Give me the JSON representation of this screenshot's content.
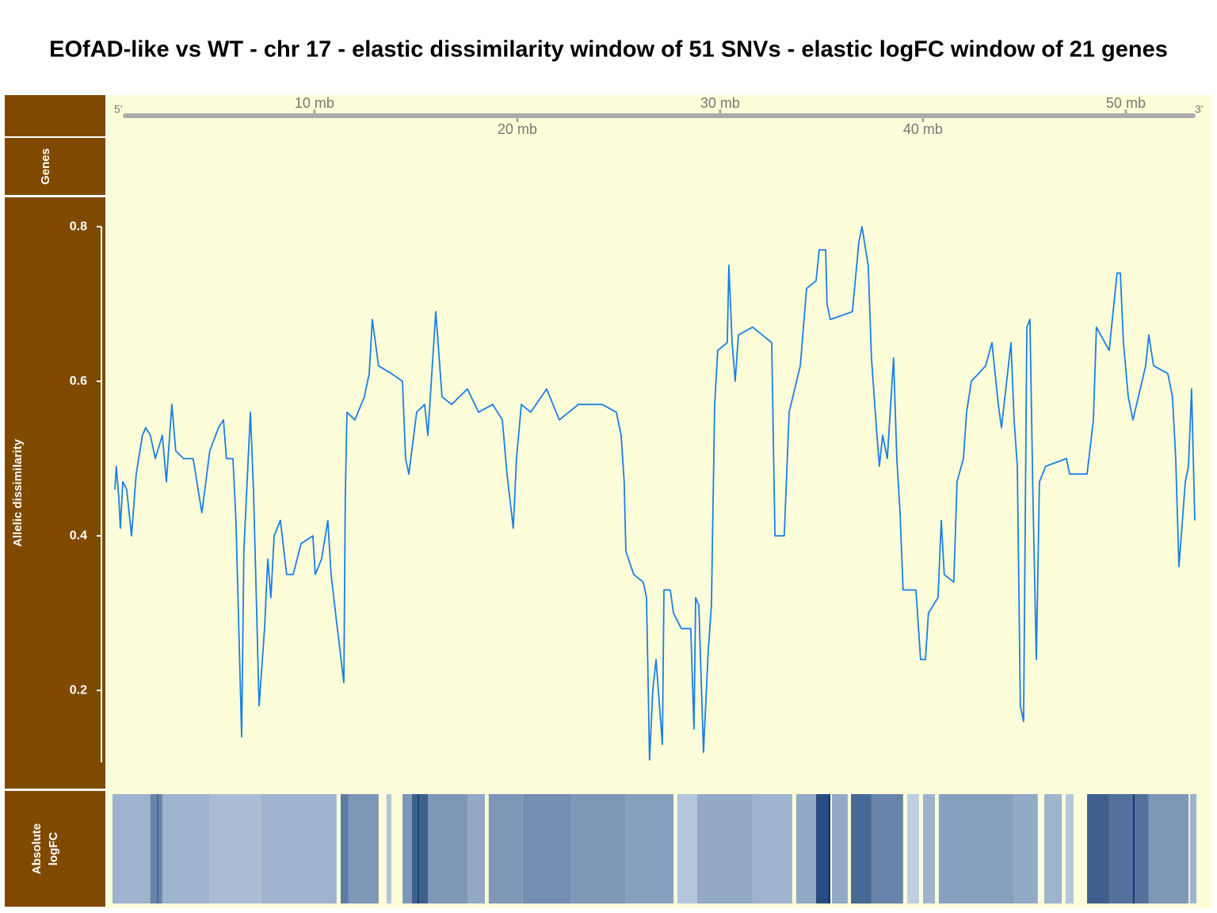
{
  "chart_data": {
    "type": "line",
    "title": "EOfAD-like vs WT - chr 17 - elastic dissimilarity window of 51 SNVs - elastic logFC window of 21 genes",
    "genome_axis": {
      "five_prime": "5'",
      "three_prime": "3'"
    },
    "gene_track_label": "Genes",
    "x": [
      0.16,
      0.23,
      0.35,
      0.43,
      0.55,
      0.74,
      0.98,
      1.21,
      1.52,
      1.68,
      1.91,
      2.15,
      2.5,
      2.7,
      2.97,
      3.16,
      3.55,
      4.02,
      4.26,
      4.45,
      4.84,
      5.27,
      5.51,
      5.66,
      5.98,
      6.13,
      6.41,
      6.52,
      6.84,
      6.99,
      7.15,
      7.27,
      7.54,
      7.7,
      7.85,
      8.01,
      8.32,
      8.63,
      8.95,
      9.34,
      9.92,
      10.04,
      10.35,
      10.66,
      10.82,
      11.13,
      11.45,
      11.52,
      11.6,
      11.99,
      12.46,
      12.7,
      12.85,
      13.16,
      13.79,
      14.34,
      14.49,
      14.65,
      15.04,
      15.43,
      15.59,
      15.98,
      16.29,
      16.76,
      17.54,
      18.09,
      18.79,
      19.26,
      19.49,
      19.8,
      19.96,
      20.2,
      20.66,
      21.45,
      22.07,
      23.01,
      24.18,
      24.88,
      25.12,
      25.27,
      25.35,
      25.74,
      26.21,
      26.37,
      26.52,
      26.68,
      26.84,
      27.15,
      27.23,
      27.54,
      27.7,
      28.09,
      28.55,
      28.71,
      28.79,
      28.95,
      29.18,
      29.41,
      29.57,
      29.73,
      29.88,
      30.35,
      30.43,
      30.59,
      30.74,
      30.9,
      31.6,
      32.54,
      32.7,
      33.16,
      33.4,
      33.95,
      34.26,
      34.73,
      34.88,
      35.2,
      35.27,
      35.43,
      36.52,
      36.84,
      36.99,
      37.3,
      37.46,
      37.7,
      37.85,
      38.01,
      38.24,
      38.55,
      38.71,
      38.87,
      39.02,
      39.65,
      39.88,
      40.12,
      40.27,
      40.74,
      40.9,
      41.05,
      41.52,
      41.68,
      41.99,
      42.15,
      42.38,
      43.09,
      43.4,
      43.71,
      43.87,
      44.34,
      44.49,
      44.65,
      44.8,
      44.96,
      45.12,
      45.27,
      45.43,
      45.59,
      45.74,
      46.05,
      47.07,
      47.23,
      48.09,
      48.4,
      48.55,
      49.18,
      49.57,
      49.73,
      49.88,
      50.12,
      50.35,
      50.98,
      51.13,
      51.37,
      52.07,
      52.3,
      52.46,
      52.62,
      52.93,
      53.09,
      53.24,
      53.4
    ],
    "series": [
      {
        "name": "Allelic dissimilarity",
        "color": "#1a7fe8",
        "values": [
          0.46,
          0.49,
          0.45,
          0.41,
          0.47,
          0.46,
          0.4,
          0.48,
          0.53,
          0.54,
          0.53,
          0.5,
          0.53,
          0.47,
          0.57,
          0.51,
          0.5,
          0.5,
          0.46,
          0.43,
          0.51,
          0.54,
          0.55,
          0.5,
          0.5,
          0.42,
          0.14,
          0.38,
          0.56,
          0.46,
          0.3,
          0.18,
          0.28,
          0.37,
          0.32,
          0.4,
          0.42,
          0.35,
          0.35,
          0.39,
          0.4,
          0.35,
          0.37,
          0.42,
          0.35,
          0.28,
          0.21,
          0.45,
          0.56,
          0.55,
          0.58,
          0.61,
          0.68,
          0.62,
          0.61,
          0.6,
          0.5,
          0.48,
          0.56,
          0.57,
          0.53,
          0.69,
          0.58,
          0.57,
          0.59,
          0.56,
          0.57,
          0.55,
          0.48,
          0.41,
          0.5,
          0.57,
          0.56,
          0.59,
          0.55,
          0.57,
          0.57,
          0.56,
          0.53,
          0.47,
          0.38,
          0.35,
          0.34,
          0.32,
          0.11,
          0.2,
          0.24,
          0.13,
          0.33,
          0.33,
          0.3,
          0.28,
          0.28,
          0.15,
          0.32,
          0.31,
          0.12,
          0.25,
          0.31,
          0.57,
          0.64,
          0.65,
          0.75,
          0.65,
          0.6,
          0.66,
          0.67,
          0.65,
          0.4,
          0.4,
          0.56,
          0.62,
          0.72,
          0.73,
          0.77,
          0.77,
          0.7,
          0.68,
          0.69,
          0.78,
          0.8,
          0.75,
          0.63,
          0.54,
          0.49,
          0.53,
          0.5,
          0.63,
          0.5,
          0.43,
          0.33,
          0.33,
          0.24,
          0.24,
          0.3,
          0.32,
          0.42,
          0.35,
          0.34,
          0.47,
          0.5,
          0.56,
          0.6,
          0.62,
          0.65,
          0.57,
          0.54,
          0.65,
          0.55,
          0.49,
          0.18,
          0.16,
          0.67,
          0.68,
          0.44,
          0.24,
          0.47,
          0.49,
          0.5,
          0.48,
          0.48,
          0.55,
          0.67,
          0.64,
          0.74,
          0.74,
          0.65,
          0.58,
          0.55,
          0.62,
          0.66,
          0.62,
          0.61,
          0.58,
          0.5,
          0.36,
          0.47,
          0.49,
          0.59,
          0.42
        ]
      }
    ],
    "xlim": [
      -0.27,
      54.26
    ],
    "xticks": [
      {
        "value": 10,
        "label": "10 mb"
      },
      {
        "value": 20,
        "label": "20 mb"
      },
      {
        "value": 30,
        "label": "30 mb"
      },
      {
        "value": 40,
        "label": "40 mb"
      },
      {
        "value": 50,
        "label": "50 mb"
      }
    ],
    "ylim": [
      0.072,
      0.839
    ],
    "yticks": [
      0.2,
      0.4,
      0.6,
      0.8
    ],
    "heatmap": {
      "label": [
        "Absolute",
        "logFC"
      ],
      "color_low": "#deebf7",
      "color_high": "#08306b",
      "segments": [
        {
          "start": 0.04,
          "end": 1.91,
          "value": 0.3
        },
        {
          "start": 1.91,
          "end": 2.5,
          "value": 0.55
        },
        {
          "start": 2.5,
          "end": 4.84,
          "value": 0.3
        },
        {
          "start": 4.84,
          "end": 7.38,
          "value": 0.25
        },
        {
          "start": 7.38,
          "end": 11.09,
          "value": 0.3
        },
        {
          "start": 11.29,
          "end": 11.68,
          "value": 0.6
        },
        {
          "start": 11.68,
          "end": 13.16,
          "value": 0.45
        },
        {
          "start": 13.55,
          "end": 13.79,
          "value": 0.2
        },
        {
          "start": 14.34,
          "end": 14.8,
          "value": 0.45
        },
        {
          "start": 14.8,
          "end": 15.59,
          "value": 0.75
        },
        {
          "start": 15.59,
          "end": 17.54,
          "value": 0.45
        },
        {
          "start": 17.54,
          "end": 18.4,
          "value": 0.35
        },
        {
          "start": 18.59,
          "end": 20.27,
          "value": 0.45
        },
        {
          "start": 20.27,
          "end": 22.62,
          "value": 0.5
        },
        {
          "start": 22.62,
          "end": 25.35,
          "value": 0.45
        },
        {
          "start": 25.35,
          "end": 27.7,
          "value": 0.4
        },
        {
          "start": 27.89,
          "end": 28.87,
          "value": 0.2
        },
        {
          "start": 28.87,
          "end": 31.6,
          "value": 0.35
        },
        {
          "start": 31.6,
          "end": 33.55,
          "value": 0.3
        },
        {
          "start": 33.75,
          "end": 34.73,
          "value": 0.35
        },
        {
          "start": 34.73,
          "end": 35.43,
          "value": 0.85
        },
        {
          "start": 35.51,
          "end": 36.29,
          "value": 0.35
        },
        {
          "start": 36.45,
          "end": 37.46,
          "value": 0.7
        },
        {
          "start": 37.46,
          "end": 39.02,
          "value": 0.55
        },
        {
          "start": 39.22,
          "end": 39.8,
          "value": 0.15
        },
        {
          "start": 40.0,
          "end": 40.59,
          "value": 0.3
        },
        {
          "start": 40.78,
          "end": 44.49,
          "value": 0.4
        },
        {
          "start": 44.49,
          "end": 45.66,
          "value": 0.35
        },
        {
          "start": 45.98,
          "end": 46.84,
          "value": 0.3
        },
        {
          "start": 47.03,
          "end": 47.42,
          "value": 0.2
        },
        {
          "start": 48.09,
          "end": 49.18,
          "value": 0.75
        },
        {
          "start": 49.18,
          "end": 51.13,
          "value": 0.65
        },
        {
          "start": 51.13,
          "end": 53.09,
          "value": 0.45
        },
        {
          "start": 53.16,
          "end": 53.48,
          "value": 0.3
        },
        {
          "start": 2.23,
          "end": 2.3,
          "value": 0.7
        },
        {
          "start": 15.08,
          "end": 15.16,
          "value": 0.9
        },
        {
          "start": 35.35,
          "end": 35.43,
          "value": 1.0
        },
        {
          "start": 50.35,
          "end": 50.43,
          "value": 0.95
        }
      ]
    }
  }
}
